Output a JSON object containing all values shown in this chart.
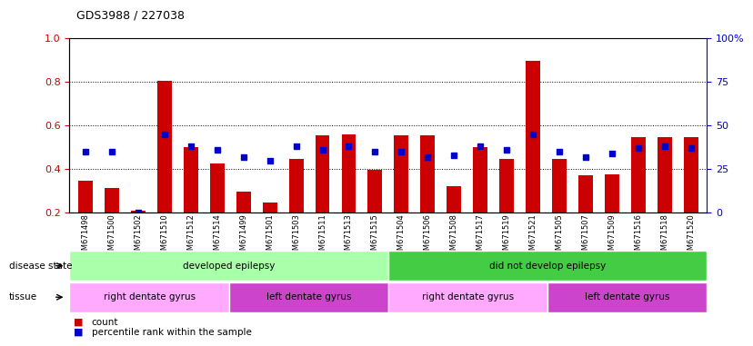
{
  "title": "GDS3988 / 227038",
  "samples": [
    "GSM671498",
    "GSM671500",
    "GSM671502",
    "GSM671510",
    "GSM671512",
    "GSM671514",
    "GSM671499",
    "GSM671501",
    "GSM671503",
    "GSM671511",
    "GSM671513",
    "GSM671515",
    "GSM671504",
    "GSM671506",
    "GSM671508",
    "GSM671517",
    "GSM671519",
    "GSM671521",
    "GSM671505",
    "GSM671507",
    "GSM671509",
    "GSM671516",
    "GSM671518",
    "GSM671520"
  ],
  "count_values": [
    0.345,
    0.315,
    0.21,
    0.805,
    0.5,
    0.425,
    0.295,
    0.245,
    0.445,
    0.555,
    0.56,
    0.395,
    0.555,
    0.555,
    0.32,
    0.5,
    0.445,
    0.895,
    0.445,
    0.37,
    0.375,
    0.545,
    0.545,
    0.545
  ],
  "percentile_values_pct": [
    35,
    35,
    0,
    45,
    38,
    36,
    32,
    30,
    38,
    36,
    38,
    35,
    35,
    32,
    33,
    38,
    36,
    45,
    35,
    32,
    34,
    37,
    38,
    37
  ],
  "bar_color": "#cc0000",
  "dot_color": "#0000cc",
  "ylim_left": [
    0.2,
    1.0
  ],
  "ylim_right": [
    0,
    100
  ],
  "yticks_left": [
    0.2,
    0.4,
    0.6,
    0.8,
    1.0
  ],
  "yticks_right": [
    0,
    25,
    50,
    75,
    100
  ],
  "ytick_labels_right": [
    "0",
    "25",
    "50",
    "75",
    "100%"
  ],
  "disease_state_groups": [
    {
      "label": "developed epilepsy",
      "start": 0,
      "end": 12,
      "color": "#aaffaa"
    },
    {
      "label": "did not develop epilepsy",
      "start": 12,
      "end": 24,
      "color": "#44cc44"
    }
  ],
  "tissue_groups": [
    {
      "label": "right dentate gyrus",
      "start": 0,
      "end": 6,
      "color": "#ffaaff"
    },
    {
      "label": "left dentate gyrus",
      "start": 6,
      "end": 12,
      "color": "#cc44cc"
    },
    {
      "label": "right dentate gyrus",
      "start": 12,
      "end": 18,
      "color": "#ffaaff"
    },
    {
      "label": "left dentate gyrus",
      "start": 18,
      "end": 24,
      "color": "#cc44cc"
    }
  ],
  "disease_state_label": "disease state",
  "tissue_label": "tissue",
  "legend_count": "count",
  "legend_percentile": "percentile rank within the sample",
  "background_color": "#ffffff",
  "plot_bg_color": "#ffffff"
}
